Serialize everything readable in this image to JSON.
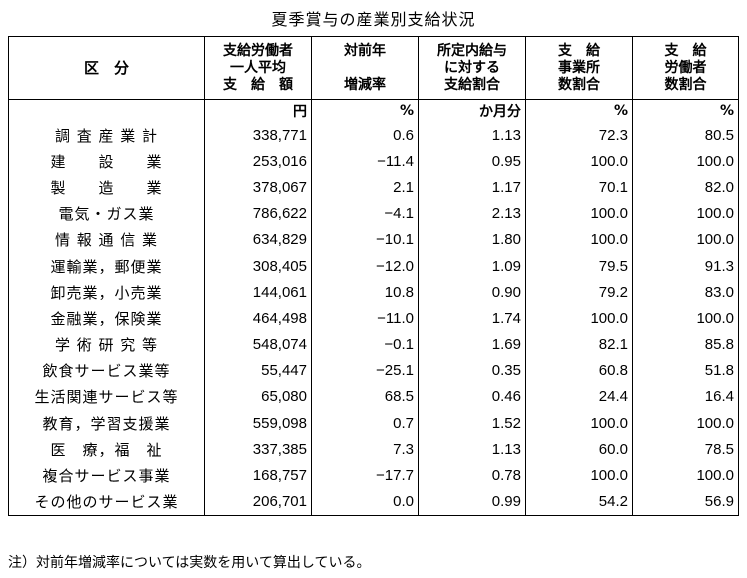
{
  "title": "夏季賞与の産業別支給状況",
  "headers": [
    [
      "区　分"
    ],
    [
      "支給労働者",
      "一人平均",
      "支　給　額"
    ],
    [
      "対前年",
      "",
      "増減率"
    ],
    [
      "所定内給与",
      "に対する",
      "支給割合"
    ],
    [
      "支　給",
      "事業所",
      "数割合"
    ],
    [
      "支　給",
      "労働者",
      "数割合"
    ]
  ],
  "units": [
    "",
    "円",
    "%",
    "か月分",
    "%",
    "%"
  ],
  "rows": [
    {
      "category": "調 査 産 業 計",
      "amount": "338,771",
      "change": "0.6",
      "ratio": "1.13",
      "establishments": "72.3",
      "workers": "80.5"
    },
    {
      "category": "建　　設　　業",
      "amount": "253,016",
      "change": "−11.4",
      "ratio": "0.95",
      "establishments": "100.0",
      "workers": "100.0"
    },
    {
      "category": "製　　造　　業",
      "amount": "378,067",
      "change": "2.1",
      "ratio": "1.17",
      "establishments": "70.1",
      "workers": "82.0"
    },
    {
      "category": "電気・ガス業",
      "amount": "786,622",
      "change": "−4.1",
      "ratio": "2.13",
      "establishments": "100.0",
      "workers": "100.0"
    },
    {
      "category": "情 報 通 信 業",
      "amount": "634,829",
      "change": "−10.1",
      "ratio": "1.80",
      "establishments": "100.0",
      "workers": "100.0"
    },
    {
      "category": "運輸業，郵便業",
      "amount": "308,405",
      "change": "−12.0",
      "ratio": "1.09",
      "establishments": "79.5",
      "workers": "91.3"
    },
    {
      "category": "卸売業，小売業",
      "amount": "144,061",
      "change": "10.8",
      "ratio": "0.90",
      "establishments": "79.2",
      "workers": "83.0"
    },
    {
      "category": "金融業，保険業",
      "amount": "464,498",
      "change": "−11.0",
      "ratio": "1.74",
      "establishments": "100.0",
      "workers": "100.0"
    },
    {
      "category": "学 術 研 究 等",
      "amount": "548,074",
      "change": "−0.1",
      "ratio": "1.69",
      "establishments": "82.1",
      "workers": "85.8"
    },
    {
      "category": "飲食サービス業等",
      "amount": "55,447",
      "change": "−25.1",
      "ratio": "0.35",
      "establishments": "60.8",
      "workers": "51.8"
    },
    {
      "category": "生活関連サービス等",
      "amount": "65,080",
      "change": "68.5",
      "ratio": "0.46",
      "establishments": "24.4",
      "workers": "16.4"
    },
    {
      "category": "教育，学習支援業",
      "amount": "559,098",
      "change": "0.7",
      "ratio": "1.52",
      "establishments": "100.0",
      "workers": "100.0"
    },
    {
      "category": "医　療，福　祉",
      "amount": "337,385",
      "change": "7.3",
      "ratio": "1.13",
      "establishments": "60.0",
      "workers": "78.5"
    },
    {
      "category": "複合サービス事業",
      "amount": "168,757",
      "change": "−17.7",
      "ratio": "0.78",
      "establishments": "100.0",
      "workers": "100.0"
    },
    {
      "category": "その他のサービス業",
      "amount": "206,701",
      "change": "0.0",
      "ratio": "0.99",
      "establishments": "54.2",
      "workers": "56.9"
    }
  ],
  "note": "注）対前年増減率については実数を用いて算出している。"
}
